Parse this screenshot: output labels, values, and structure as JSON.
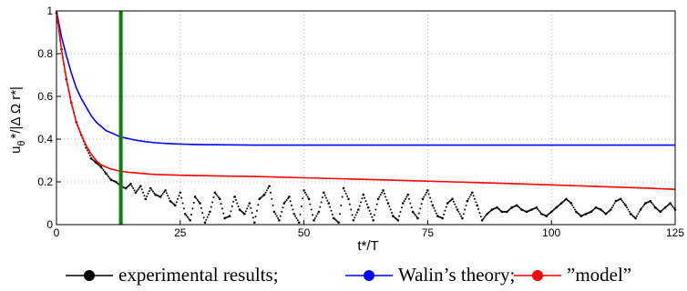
{
  "chart_data": {
    "type": "line",
    "xlabel": "t*/T",
    "ylabel": "u_θ*/|Δ Ω r*|",
    "ylabel_parts": {
      "u": "u",
      "theta": "θ",
      "star": "*",
      "rest": "/|Δ Ω r*|"
    },
    "xlim": [
      0,
      125
    ],
    "ylim": [
      0,
      1
    ],
    "xticks": [
      "0",
      "25",
      "50",
      "75",
      "100",
      "125"
    ],
    "yticks": [
      "0",
      "0.2",
      "0.4",
      "0.6",
      "0.8",
      "1"
    ],
    "grid": true,
    "legend_position": "bottom",
    "vline": {
      "x": 13,
      "color": "#0a7d0a"
    },
    "series": [
      {
        "name": "experimental results;",
        "color": "#000000",
        "style": "dots",
        "x": [
          0,
          1,
          2,
          3,
          4,
          5,
          6,
          7,
          8,
          9,
          10,
          11,
          12,
          13,
          14,
          15,
          16,
          17,
          18,
          19,
          20,
          21,
          22,
          23,
          24,
          25,
          26,
          27,
          28,
          29,
          30,
          31,
          32,
          33,
          34,
          35,
          36,
          37,
          38,
          39,
          40,
          41,
          42,
          43,
          44,
          45,
          46,
          47,
          48,
          49,
          50,
          51,
          52,
          53,
          54,
          55,
          56,
          57,
          58,
          59,
          60,
          61,
          62,
          63,
          64,
          65,
          66,
          67,
          68,
          69,
          70,
          71,
          72,
          73,
          74,
          75,
          76,
          77,
          78,
          79,
          80,
          81,
          82,
          83,
          84,
          85,
          86,
          87,
          88,
          89,
          90,
          91,
          92,
          93,
          94,
          95,
          96,
          97,
          98,
          99,
          100,
          101,
          102,
          103,
          104,
          105,
          106,
          107,
          108,
          109,
          110,
          111,
          112,
          113,
          114,
          115,
          116,
          117,
          118,
          119,
          120,
          121,
          122,
          123,
          124,
          125
        ],
        "y": [
          0.99,
          0.82,
          0.68,
          0.57,
          0.48,
          0.42,
          0.36,
          0.31,
          0.29,
          0.27,
          0.24,
          0.21,
          0.2,
          0.18,
          0.17,
          0.19,
          0.15,
          0.18,
          0.12,
          0.17,
          0.14,
          0.13,
          0.16,
          0.11,
          0.09,
          0.15,
          0.05,
          0.02,
          0.13,
          0.1,
          0.01,
          0.06,
          0.15,
          0.12,
          0.03,
          0.04,
          0.13,
          0.07,
          0.05,
          0.1,
          0.01,
          0.12,
          0.14,
          0.18,
          0.06,
          0.02,
          0.1,
          0.13,
          0.05,
          0.01,
          0.16,
          0.12,
          0.02,
          0.06,
          0.15,
          0.1,
          0.03,
          0.01,
          0.17,
          0.12,
          0.02,
          0.07,
          0.14,
          0.08,
          0.02,
          0.12,
          0.16,
          0.1,
          0.04,
          0.02,
          0.1,
          0.14,
          0.06,
          0.03,
          0.12,
          0.16,
          0.09,
          0.04,
          0.03,
          0.1,
          0.12,
          0.07,
          0.03,
          0.11,
          0.15,
          0.09,
          0.02,
          0.05,
          0.07,
          0.08,
          0.06,
          0.06,
          0.08,
          0.09,
          0.07,
          0.06,
          0.07,
          0.08,
          0.05,
          0.04,
          0.06,
          0.08,
          0.1,
          0.12,
          0.1,
          0.06,
          0.04,
          0.05,
          0.06,
          0.08,
          0.07,
          0.05,
          0.07,
          0.11,
          0.12,
          0.09,
          0.05,
          0.03,
          0.07,
          0.1,
          0.11,
          0.08,
          0.06,
          0.08,
          0.1,
          0.07
        ]
      },
      {
        "name": "Walin’s theory;",
        "color": "#0000ff",
        "style": "line",
        "x": [
          0,
          1,
          2,
          3,
          4,
          5,
          6,
          7,
          8,
          9,
          10,
          11,
          12,
          13,
          14,
          15,
          16,
          18,
          20,
          22,
          25,
          28,
          30,
          35,
          40,
          45,
          50,
          60,
          70,
          80,
          90,
          100,
          110,
          120,
          125
        ],
        "y": [
          1.0,
          0.88,
          0.79,
          0.71,
          0.64,
          0.59,
          0.55,
          0.51,
          0.48,
          0.46,
          0.44,
          0.43,
          0.42,
          0.41,
          0.405,
          0.4,
          0.395,
          0.388,
          0.383,
          0.38,
          0.377,
          0.375,
          0.374,
          0.373,
          0.372,
          0.372,
          0.372,
          0.372,
          0.372,
          0.372,
          0.372,
          0.372,
          0.372,
          0.372,
          0.372
        ]
      },
      {
        "name": "”model”",
        "color": "#ff0000",
        "style": "line",
        "x": [
          0,
          1,
          2,
          3,
          4,
          5,
          6,
          7,
          8,
          9,
          10,
          11,
          12,
          13,
          14,
          15,
          16,
          18,
          20,
          22,
          25,
          30,
          35,
          40,
          50,
          60,
          70,
          80,
          90,
          100,
          110,
          120,
          125
        ],
        "y": [
          1.0,
          0.82,
          0.68,
          0.57,
          0.48,
          0.42,
          0.37,
          0.33,
          0.3,
          0.28,
          0.27,
          0.26,
          0.255,
          0.25,
          0.247,
          0.244,
          0.242,
          0.238,
          0.235,
          0.233,
          0.231,
          0.229,
          0.227,
          0.225,
          0.219,
          0.213,
          0.207,
          0.2,
          0.193,
          0.186,
          0.178,
          0.17,
          0.165
        ]
      }
    ]
  }
}
